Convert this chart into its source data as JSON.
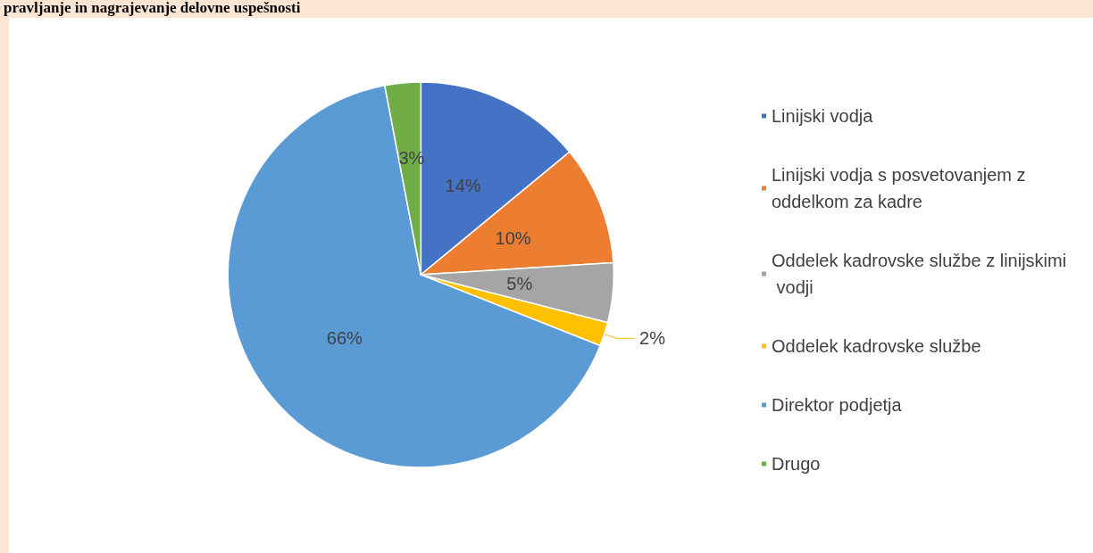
{
  "chart_data": {
    "type": "pie",
    "title": "pravljanje in nagrajevanje delovne uspešnosti",
    "categories": [
      "Linijski vodja",
      "Linijski vodja s posvetovanjem z oddelkom za kadre",
      "Oddelek kadrovske službe z linijskimi vodji",
      "Oddelek kadrovske službe",
      "Direktor podjetja",
      "Drugo"
    ],
    "values": [
      14,
      10,
      5,
      2,
      66,
      3
    ],
    "colors": [
      "#4472c4",
      "#ed7d31",
      "#a5a5a5",
      "#ffc000",
      "#5b9bd5",
      "#70ad47"
    ],
    "value_labels": [
      "14%",
      "10%",
      "5%",
      "2%",
      "66%",
      "3%"
    ],
    "legend": "right"
  }
}
